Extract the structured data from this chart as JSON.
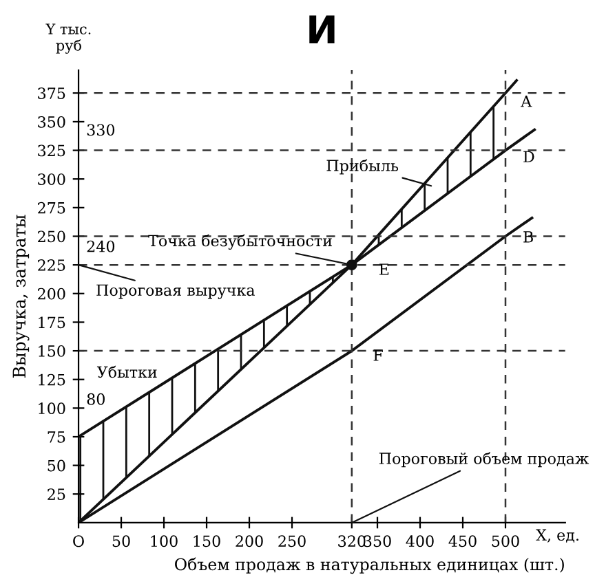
{
  "chart_data": {
    "type": "line",
    "title": "И",
    "xlabel": "Объем продаж в натуральных единицах (шт.)",
    "ylabel": "Выручка, затраты",
    "series": [
      {
        "color": "#111111",
        "x": [
          0,
          320,
          500,
          513
        ],
        "values": [
          0,
          225,
          375,
          386
        ],
        "lower": [
          75,
          225,
          325,
          null
        ],
        "upper": [
          0,
          225,
          375,
          null
        ]
      },
      {
        "color": "#111111",
        "x": [
          0,
          320,
          500,
          534
        ],
        "values": [
          75,
          225,
          325,
          343
        ]
      },
      {
        "color": "#111111",
        "x": [
          0,
          320,
          500,
          531
        ],
        "values": [
          0,
          150,
          250,
          266
        ]
      },
      {
        "type": "scatter",
        "color": "#111111",
        "x": [
          320
        ],
        "values": [
          225
        ],
        "marker": "circle"
      }
    ],
    "xlim": [
      0,
      570
    ],
    "ylim": [
      0,
      395
    ],
    "xticks": [
      {
        "value": 0,
        "label": "O"
      },
      50,
      100,
      150,
      200,
      250,
      320,
      350,
      400,
      450,
      500
    ],
    "yticks": [
      25,
      50,
      75,
      100,
      125,
      150,
      175,
      200,
      225,
      250,
      275,
      300,
      325,
      350,
      375
    ],
    "ref_lines": [
      {
        "axis": "y",
        "value": 375,
        "line_style": "dashed"
      },
      {
        "axis": "y",
        "value": 325,
        "line_style": "dashed"
      },
      {
        "axis": "y",
        "value": 250,
        "line_style": "dashed"
      },
      {
        "axis": "y",
        "value": 225,
        "line_style": "dashed"
      },
      {
        "axis": "y",
        "value": 150,
        "line_style": "dashed"
      },
      {
        "axis": "x",
        "value": 320,
        "line_style": "dashed"
      },
      {
        "axis": "x",
        "value": 500,
        "line_style": "dashed"
      }
    ],
    "annotations": [
      {
        "text": "330",
        "x": 0,
        "y": 325
      },
      {
        "text": "240",
        "x": 0,
        "y": 225
      },
      {
        "text": "80",
        "x": 0,
        "y": 75
      },
      {
        "text": "A",
        "x": 500,
        "y": 375
      },
      {
        "text": "D",
        "x": 500,
        "y": 325
      },
      {
        "text": "B",
        "x": 500,
        "y": 250
      },
      {
        "text": "E",
        "x": 320,
        "y": 225
      },
      {
        "text": "F",
        "x": 320,
        "y": 150
      },
      {
        "text": "Точка безубыточности",
        "x": 320,
        "y": 225
      },
      {
        "text": "Пороговая выручка",
        "x": 0,
        "y": 225
      },
      {
        "text": "Прибыль",
        "x": 413,
        "y": 294
      },
      "Убытки",
      {
        "text": "Пороговый объем продаж",
        "x": 320,
        "y": 0
      },
      "Y тыс.\nруб",
      "X, ед."
    ],
    "grid": false,
    "legend": false,
    "line_style": "solid"
  }
}
